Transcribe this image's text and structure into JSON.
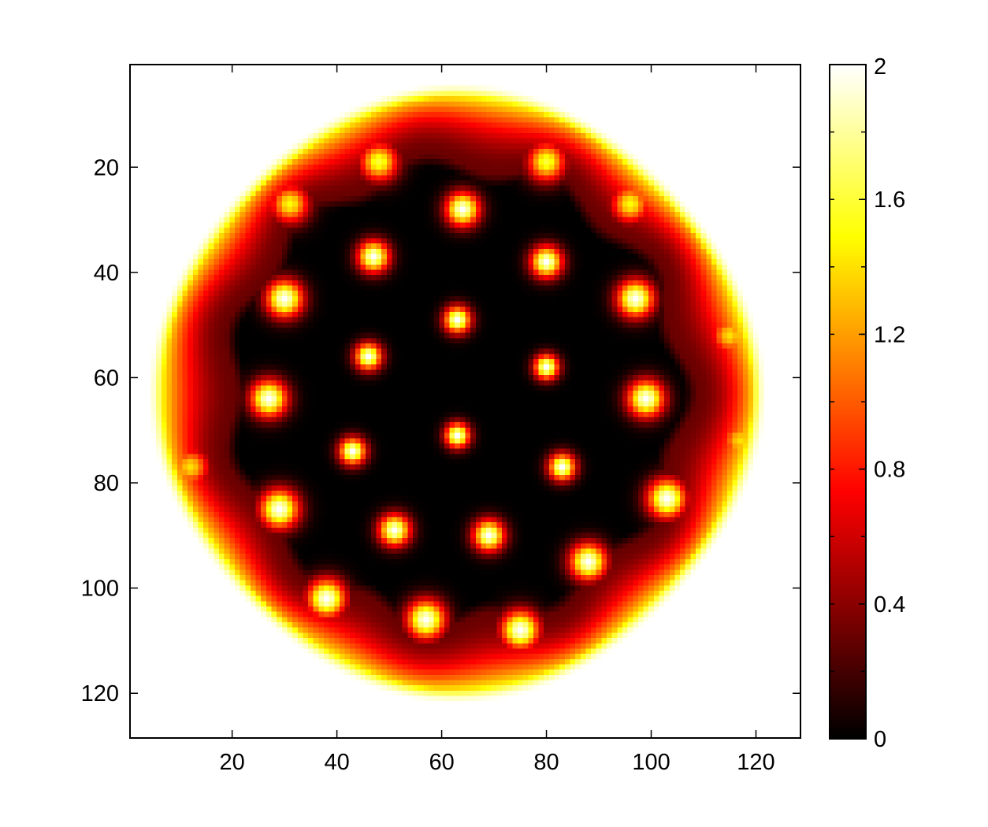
{
  "chart_data": {
    "type": "heatmap",
    "title": "",
    "xlabel": "",
    "ylabel": "",
    "grid": false,
    "xlim": [
      0.5,
      128.5
    ],
    "ylim": [
      0.5,
      128.5
    ],
    "y_direction": "reversed",
    "grid_size": 128,
    "x_ticks": [
      "20",
      "40",
      "60",
      "80",
      "100",
      "120"
    ],
    "y_ticks": [
      "20",
      "40",
      "60",
      "80",
      "100",
      "120"
    ],
    "colormap": "hot",
    "colorbar": {
      "placement": "right",
      "range": [
        0,
        2
      ],
      "ticks": [
        "0",
        "0.4",
        "0.8",
        "1.2",
        "1.6",
        "2"
      ]
    },
    "regions": {
      "outside_value": 2,
      "ring_value": 0.5,
      "interior_value": 0,
      "center": [
        63,
        63
      ],
      "outer_radius": 58,
      "inner_radius": 44,
      "ring_lobes": 11
    },
    "spots": [
      {
        "x": 48,
        "y": 19,
        "r": 3.5,
        "peak": 1.6
      },
      {
        "x": 80,
        "y": 19,
        "r": 3.5,
        "peak": 1.6
      },
      {
        "x": 31,
        "y": 27,
        "r": 3.5,
        "peak": 1.5
      },
      {
        "x": 96,
        "y": 27,
        "r": 3.5,
        "peak": 1.5
      },
      {
        "x": 115,
        "y": 52,
        "r": 3.5,
        "peak": 1.4
      },
      {
        "x": 117,
        "y": 72,
        "r": 3.5,
        "peak": 1.4
      },
      {
        "x": 12,
        "y": 77,
        "r": 3.5,
        "peak": 1.4
      },
      {
        "x": 64,
        "y": 28,
        "r": 3,
        "peak": 2
      },
      {
        "x": 47,
        "y": 37,
        "r": 2.8,
        "peak": 2
      },
      {
        "x": 80,
        "y": 38,
        "r": 2.8,
        "peak": 2
      },
      {
        "x": 30,
        "y": 45,
        "r": 3.3,
        "peak": 2
      },
      {
        "x": 97,
        "y": 45,
        "r": 3.3,
        "peak": 2
      },
      {
        "x": 63,
        "y": 49,
        "r": 2.4,
        "peak": 2
      },
      {
        "x": 46,
        "y": 56,
        "r": 2.4,
        "peak": 2
      },
      {
        "x": 80,
        "y": 58,
        "r": 2.2,
        "peak": 2
      },
      {
        "x": 27,
        "y": 64,
        "r": 3.3,
        "peak": 2
      },
      {
        "x": 99,
        "y": 64,
        "r": 3.3,
        "peak": 2
      },
      {
        "x": 63,
        "y": 71,
        "r": 2.2,
        "peak": 2
      },
      {
        "x": 43,
        "y": 74,
        "r": 2.4,
        "peak": 2
      },
      {
        "x": 83,
        "y": 77,
        "r": 2.4,
        "peak": 2
      },
      {
        "x": 29,
        "y": 85,
        "r": 3.5,
        "peak": 2
      },
      {
        "x": 103,
        "y": 83,
        "r": 3.5,
        "peak": 2
      },
      {
        "x": 51,
        "y": 89,
        "r": 2.8,
        "peak": 2
      },
      {
        "x": 69,
        "y": 90,
        "r": 2.8,
        "peak": 2
      },
      {
        "x": 88,
        "y": 95,
        "r": 3.3,
        "peak": 2
      },
      {
        "x": 38,
        "y": 102,
        "r": 3.5,
        "peak": 2
      },
      {
        "x": 57,
        "y": 106,
        "r": 3.5,
        "peak": 2
      },
      {
        "x": 75,
        "y": 108,
        "r": 3.5,
        "peak": 2
      }
    ]
  }
}
